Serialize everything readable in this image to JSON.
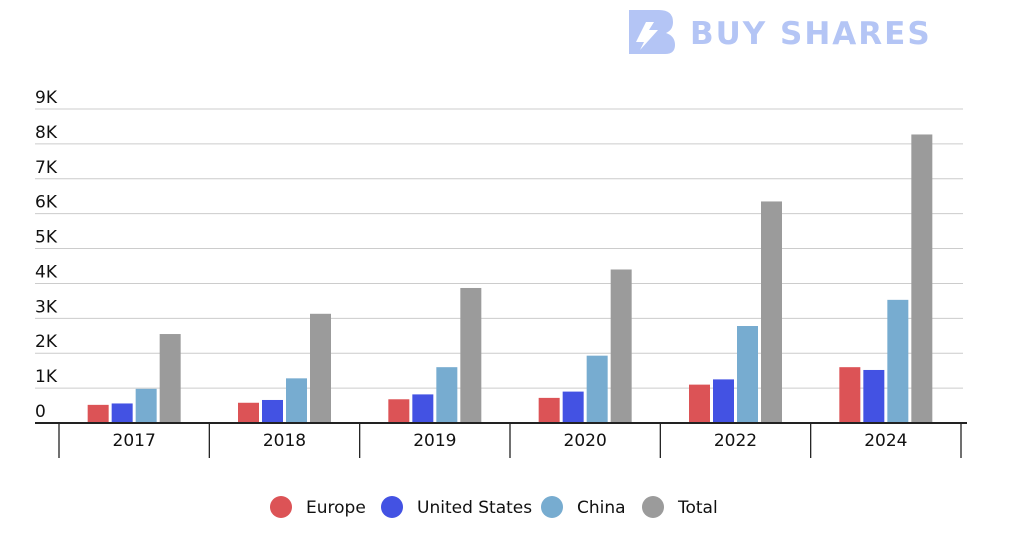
{
  "brand": {
    "name": "BUY SHARES",
    "color": "#b4c5f5"
  },
  "chart_data": {
    "type": "bar",
    "categories": [
      "2017",
      "2018",
      "2019",
      "2020",
      "2022",
      "2024"
    ],
    "series": [
      {
        "name": "Europe",
        "color": "#dc5356",
        "values": [
          520,
          580,
          680,
          720,
          1100,
          1600
        ]
      },
      {
        "name": "United States",
        "color": "#4352e3",
        "values": [
          560,
          660,
          820,
          900,
          1250,
          1520
        ]
      },
      {
        "name": "China",
        "color": "#77acd0",
        "values": [
          980,
          1280,
          1600,
          1930,
          2780,
          3530
        ]
      },
      {
        "name": "Total",
        "color": "#9b9b9b",
        "values": [
          2550,
          3130,
          3870,
          4400,
          6350,
          8270
        ]
      }
    ],
    "yticks": [
      {
        "value": 0,
        "label": "0"
      },
      {
        "value": 1000,
        "label": "1K"
      },
      {
        "value": 2000,
        "label": "2K"
      },
      {
        "value": 3000,
        "label": "3K"
      },
      {
        "value": 4000,
        "label": "4K"
      },
      {
        "value": 5000,
        "label": "5K"
      },
      {
        "value": 6000,
        "label": "6K"
      },
      {
        "value": 7000,
        "label": "7K"
      },
      {
        "value": 8000,
        "label": "8K"
      },
      {
        "value": 9000,
        "label": "9K"
      }
    ],
    "ylim": [
      0,
      9000
    ],
    "title": "",
    "xlabel": "",
    "ylabel": "",
    "grid": true,
    "legend_position": "bottom"
  }
}
